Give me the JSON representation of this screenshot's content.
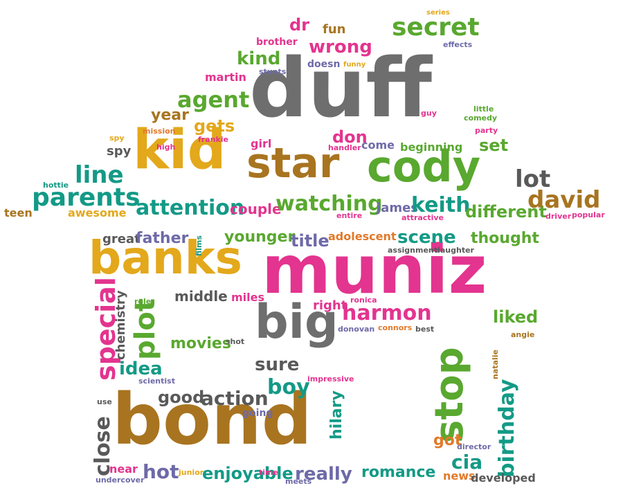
{
  "colors": {
    "pink": "#e3348f",
    "gold": "#e3a81b",
    "gray": "#6e6e6e",
    "green": "#59a82f",
    "brown": "#a87420",
    "teal": "#139a86",
    "purple": "#6e6aa8",
    "orange": "#e2792a",
    "dark": "#595959"
  },
  "words": [
    {
      "id": "duff",
      "text": "duff",
      "color": "gray"
    },
    {
      "id": "muniz",
      "text": "muniz",
      "color": "pink"
    },
    {
      "id": "bond",
      "text": "bond",
      "color": "brown"
    },
    {
      "id": "kid",
      "text": "kid",
      "color": "gold"
    },
    {
      "id": "star",
      "text": "star",
      "color": "brown"
    },
    {
      "id": "cody",
      "text": "cody",
      "color": "green"
    },
    {
      "id": "banks",
      "text": "banks",
      "color": "gold"
    },
    {
      "id": "big",
      "text": "big",
      "color": "gray"
    },
    {
      "id": "stop",
      "text": "stop",
      "color": "green"
    },
    {
      "id": "secret",
      "text": "secret",
      "color": "green"
    },
    {
      "id": "wrong",
      "text": "wrong",
      "color": "pink"
    },
    {
      "id": "dr",
      "text": "dr",
      "color": "pink"
    },
    {
      "id": "fun",
      "text": "fun",
      "color": "brown"
    },
    {
      "id": "series",
      "text": "series",
      "color": "gold"
    },
    {
      "id": "brother",
      "text": "brother",
      "color": "pink"
    },
    {
      "id": "effects",
      "text": "effects",
      "color": "purple"
    },
    {
      "id": "kind",
      "text": "kind",
      "color": "green"
    },
    {
      "id": "doesn",
      "text": "doesn",
      "color": "purple"
    },
    {
      "id": "funny",
      "text": "funny",
      "color": "gold"
    },
    {
      "id": "stunts",
      "text": "stunts",
      "color": "purple"
    },
    {
      "id": "martin",
      "text": "martin",
      "color": "pink"
    },
    {
      "id": "agent",
      "text": "agent",
      "color": "green"
    },
    {
      "id": "year",
      "text": "year",
      "color": "brown"
    },
    {
      "id": "mission",
      "text": "mission",
      "color": "orange"
    },
    {
      "id": "gets",
      "text": "gets",
      "color": "gold"
    },
    {
      "id": "frankie",
      "text": "frankie",
      "color": "pink"
    },
    {
      "id": "spy_small",
      "text": "spy",
      "color": "gold"
    },
    {
      "id": "high",
      "text": "high",
      "color": "pink"
    },
    {
      "id": "spy",
      "text": "spy",
      "color": "dark"
    },
    {
      "id": "girl",
      "text": "girl",
      "color": "pink"
    },
    {
      "id": "don",
      "text": "don",
      "color": "pink"
    },
    {
      "id": "handler",
      "text": "handler",
      "color": "pink"
    },
    {
      "id": "come",
      "text": "come",
      "color": "purple"
    },
    {
      "id": "beginning",
      "text": "beginning",
      "color": "green"
    },
    {
      "id": "guy",
      "text": "guy",
      "color": "pink"
    },
    {
      "id": "little",
      "text": "little",
      "color": "green"
    },
    {
      "id": "comedy",
      "text": "comedy",
      "color": "green"
    },
    {
      "id": "party",
      "text": "party",
      "color": "pink"
    },
    {
      "id": "set",
      "text": "set",
      "color": "green"
    },
    {
      "id": "lot",
      "text": "lot",
      "color": "dark"
    },
    {
      "id": "line",
      "text": "line",
      "color": "teal"
    },
    {
      "id": "hottie",
      "text": "hottie",
      "color": "teal"
    },
    {
      "id": "parents",
      "text": "parents",
      "color": "teal"
    },
    {
      "id": "teen",
      "text": "teen",
      "color": "brown"
    },
    {
      "id": "awesome",
      "text": "awesome",
      "color": "gold"
    },
    {
      "id": "attention",
      "text": "attention",
      "color": "teal"
    },
    {
      "id": "couple",
      "text": "couple",
      "color": "pink"
    },
    {
      "id": "watching",
      "text": "watching",
      "color": "green"
    },
    {
      "id": "entire",
      "text": "entire",
      "color": "pink"
    },
    {
      "id": "james",
      "text": "james",
      "color": "purple"
    },
    {
      "id": "keith",
      "text": "keith",
      "color": "teal"
    },
    {
      "id": "attractive",
      "text": "attractive",
      "color": "pink"
    },
    {
      "id": "different",
      "text": "different",
      "color": "green"
    },
    {
      "id": "david",
      "text": "david",
      "color": "brown"
    },
    {
      "id": "driver",
      "text": "driver",
      "color": "pink"
    },
    {
      "id": "popular",
      "text": "popular",
      "color": "pink"
    },
    {
      "id": "great",
      "text": "great",
      "color": "dark"
    },
    {
      "id": "father",
      "text": "father",
      "color": "purple"
    },
    {
      "id": "films",
      "text": "films",
      "color": "teal"
    },
    {
      "id": "younger",
      "text": "younger",
      "color": "green"
    },
    {
      "id": "title",
      "text": "title",
      "color": "purple"
    },
    {
      "id": "adolescent",
      "text": "adolescent",
      "color": "orange"
    },
    {
      "id": "scene",
      "text": "scene",
      "color": "teal"
    },
    {
      "id": "assignment",
      "text": "assignment",
      "color": "dark"
    },
    {
      "id": "daughter",
      "text": "daughter",
      "color": "dark"
    },
    {
      "id": "thought",
      "text": "thought",
      "color": "green"
    },
    {
      "id": "special",
      "text": "special",
      "color": "pink"
    },
    {
      "id": "chemistry",
      "text": "chemistry",
      "color": "dark"
    },
    {
      "id": "plot",
      "text": "plot",
      "color": "green"
    },
    {
      "id": "role",
      "text": "role",
      "color": "green"
    },
    {
      "id": "middle",
      "text": "middle",
      "color": "dark"
    },
    {
      "id": "miles",
      "text": "miles",
      "color": "pink"
    },
    {
      "id": "right",
      "text": "right",
      "color": "pink"
    },
    {
      "id": "ronica",
      "text": "ronica",
      "color": "pink"
    },
    {
      "id": "harmon",
      "text": "harmon",
      "color": "pink"
    },
    {
      "id": "liked",
      "text": "liked",
      "color": "green"
    },
    {
      "id": "donovan",
      "text": "donovan",
      "color": "purple"
    },
    {
      "id": "connors",
      "text": "connors",
      "color": "orange"
    },
    {
      "id": "best",
      "text": "best",
      "color": "dark"
    },
    {
      "id": "angie",
      "text": "angie",
      "color": "brown"
    },
    {
      "id": "movies",
      "text": "movies",
      "color": "green"
    },
    {
      "id": "shot",
      "text": "shot",
      "color": "dark"
    },
    {
      "id": "idea",
      "text": "idea",
      "color": "teal"
    },
    {
      "id": "sure",
      "text": "sure",
      "color": "dark"
    },
    {
      "id": "natalie",
      "text": "natalie",
      "color": "brown"
    },
    {
      "id": "birthday",
      "text": "birthday",
      "color": "teal"
    },
    {
      "id": "scientist",
      "text": "scientist",
      "color": "purple"
    },
    {
      "id": "boy",
      "text": "boy",
      "color": "teal"
    },
    {
      "id": "impressive",
      "text": "impressive",
      "color": "pink"
    },
    {
      "id": "good",
      "text": "good",
      "color": "dark"
    },
    {
      "id": "action",
      "text": "action",
      "color": "dark"
    },
    {
      "id": "use",
      "text": "use",
      "color": "dark"
    },
    {
      "id": "going",
      "text": "going",
      "color": "purple"
    },
    {
      "id": "hilary",
      "text": "hilary",
      "color": "teal"
    },
    {
      "id": "close",
      "text": "close",
      "color": "dark"
    },
    {
      "id": "got",
      "text": "got",
      "color": "orange"
    },
    {
      "id": "director",
      "text": "director",
      "color": "purple"
    },
    {
      "id": "cia",
      "text": "cia",
      "color": "teal"
    },
    {
      "id": "near",
      "text": "near",
      "color": "pink"
    },
    {
      "id": "hot",
      "text": "hot",
      "color": "purple"
    },
    {
      "id": "junior",
      "text": "junior",
      "color": "gold"
    },
    {
      "id": "enjoyable",
      "text": "enjoyable",
      "color": "teal"
    },
    {
      "id": "time",
      "text": "time",
      "color": "pink"
    },
    {
      "id": "meets",
      "text": "meets",
      "color": "purple"
    },
    {
      "id": "really",
      "text": "really",
      "color": "purple"
    },
    {
      "id": "romance",
      "text": "romance",
      "color": "teal"
    },
    {
      "id": "news",
      "text": "news",
      "color": "orange"
    },
    {
      "id": "developed",
      "text": "developed",
      "color": "dark"
    },
    {
      "id": "undercover",
      "text": "undercover",
      "color": "purple"
    }
  ]
}
